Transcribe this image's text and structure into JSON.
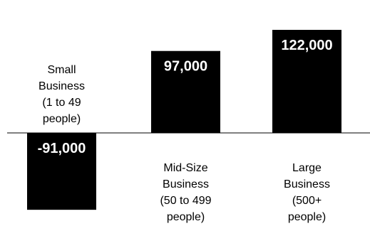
{
  "chart_data": {
    "type": "bar",
    "categories": [
      "Small Business (1 to 49 people)",
      "Mid-Size Business (50 to 499 people)",
      "Large Business (500+ people)"
    ],
    "category_label_lines": [
      [
        "Small",
        "Business",
        "(1 to 49",
        "people)"
      ],
      [
        "Mid-Size",
        "Business",
        "(50 to 499",
        "people)"
      ],
      [
        "Large",
        "Business",
        "(500+",
        "people)"
      ]
    ],
    "values": [
      -91000,
      97000,
      122000
    ],
    "data_labels": [
      "-91,000",
      "97,000",
      "122,000"
    ],
    "title": "",
    "xlabel": "",
    "ylabel": "",
    "ylim": [
      -130000,
      130000
    ],
    "grid": false,
    "legend": "none",
    "colors": {
      "bar": "#000000",
      "bar_label": "#ffffff",
      "axis": "#000000",
      "text": "#000000"
    }
  }
}
